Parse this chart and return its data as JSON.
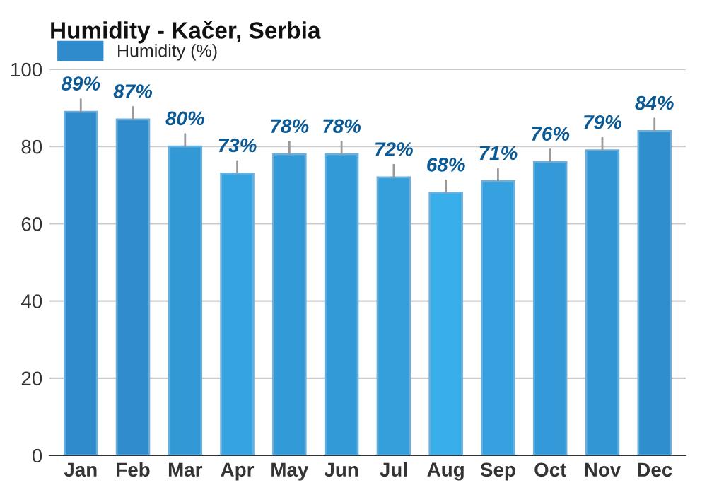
{
  "chart_data": {
    "type": "bar",
    "title": "Humidity - Kačer, Serbia",
    "categories": [
      "Jan",
      "Feb",
      "Mar",
      "Apr",
      "May",
      "Jun",
      "Jul",
      "Aug",
      "Sep",
      "Oct",
      "Nov",
      "Dec"
    ],
    "series": [
      {
        "name": "Humidity (%)",
        "color": "#2f8bcb",
        "values": [
          89,
          87,
          80,
          73,
          78,
          78,
          72,
          68,
          71,
          76,
          79,
          84
        ],
        "colors": [
          "#2f8bcb",
          "#308ccc",
          "#3298d6",
          "#35a3df",
          "#339ad8",
          "#339ad8",
          "#359fdc",
          "#38aeea",
          "#35a2df",
          "#3399d8",
          "#3396d4",
          "#2f8fce"
        ],
        "value_labels": [
          "89%",
          "87%",
          "80%",
          "73%",
          "78%",
          "78%",
          "72%",
          "68%",
          "71%",
          "76%",
          "79%",
          "84%"
        ]
      }
    ],
    "ylim": [
      0,
      100
    ],
    "yticks": [
      0,
      20,
      40,
      60,
      80,
      100
    ],
    "grid": "y",
    "legend": "top left"
  }
}
